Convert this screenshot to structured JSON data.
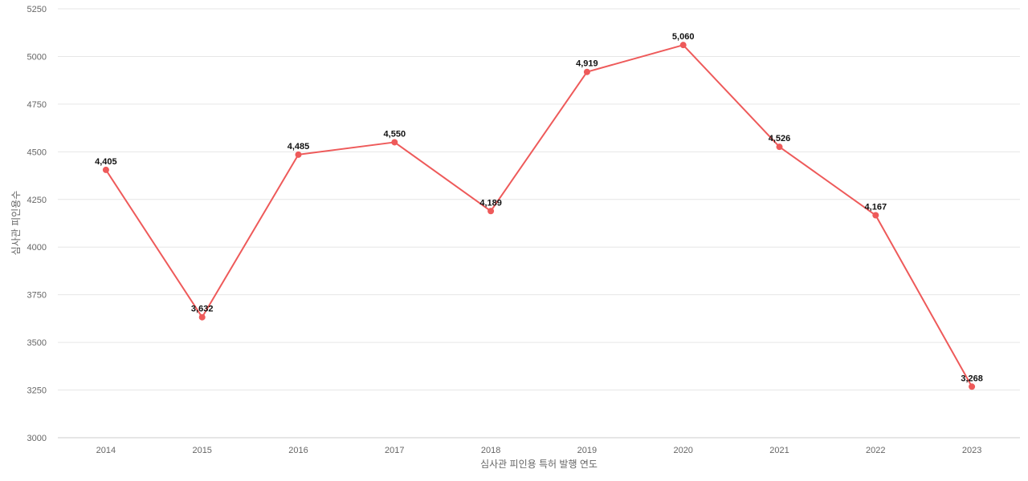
{
  "chart_data": {
    "type": "line",
    "categories": [
      "2014",
      "2015",
      "2016",
      "2017",
      "2018",
      "2019",
      "2020",
      "2021",
      "2022",
      "2023"
    ],
    "series": [
      {
        "values": [
          4405,
          3632,
          4485,
          4550,
          4189,
          4919,
          5060,
          4526,
          4167,
          3268
        ]
      }
    ],
    "data_labels": [
      "4,405",
      "3,632",
      "4,485",
      "4,550",
      "4,189",
      "4,919",
      "5,060",
      "4,526",
      "4,167",
      "3,268"
    ],
    "xlabel": "심사관 피인용 특허 발행 연도",
    "ylabel": "심사관 피인용수",
    "ylim": [
      3000,
      5250
    ],
    "yticks": [
      "3000",
      "3250",
      "3500",
      "3750",
      "4000",
      "4250",
      "4500",
      "4750",
      "5000",
      "5250"
    ],
    "grid": true,
    "line_color": "#ee5a5a"
  }
}
